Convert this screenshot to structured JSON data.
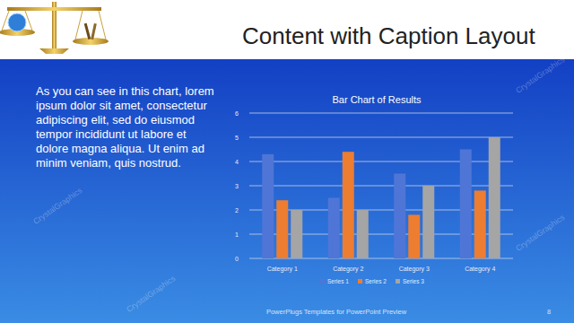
{
  "slide": {
    "title": "Content with Caption Layout",
    "caption_lines": [
      "As you can see in this chart, lorem",
      "ipsum dolor sit amet, consectetur",
      "adipiscing elit, sed do eiusmod",
      "tempor incididunt ut labore et",
      "dolore magna aliqua. Ut enim ad",
      "minim veniam, quis nostrud."
    ],
    "footer": "PowerPlugs Templates for PowerPoint Preview",
    "page_number": "8",
    "watermark": "CrystalGraphics"
  },
  "chart_data": {
    "type": "bar",
    "title": "Bar Chart of Results",
    "categories": [
      "Category 1",
      "Category 2",
      "Category 3",
      "Category 4"
    ],
    "series": [
      {
        "name": "Series 1",
        "color": "#4f76d6",
        "values": [
          4.3,
          2.5,
          3.5,
          4.5
        ]
      },
      {
        "name": "Series 2",
        "color": "#ed7d31",
        "values": [
          2.4,
          4.4,
          1.8,
          2.8
        ]
      },
      {
        "name": "Series 3",
        "color": "#a5a5a5",
        "values": [
          2,
          2,
          3,
          5
        ]
      }
    ],
    "ylim": [
      0,
      6
    ],
    "yticks": [
      0,
      1,
      2,
      3,
      4,
      5,
      6
    ],
    "grid": true,
    "legend": "bottom"
  }
}
